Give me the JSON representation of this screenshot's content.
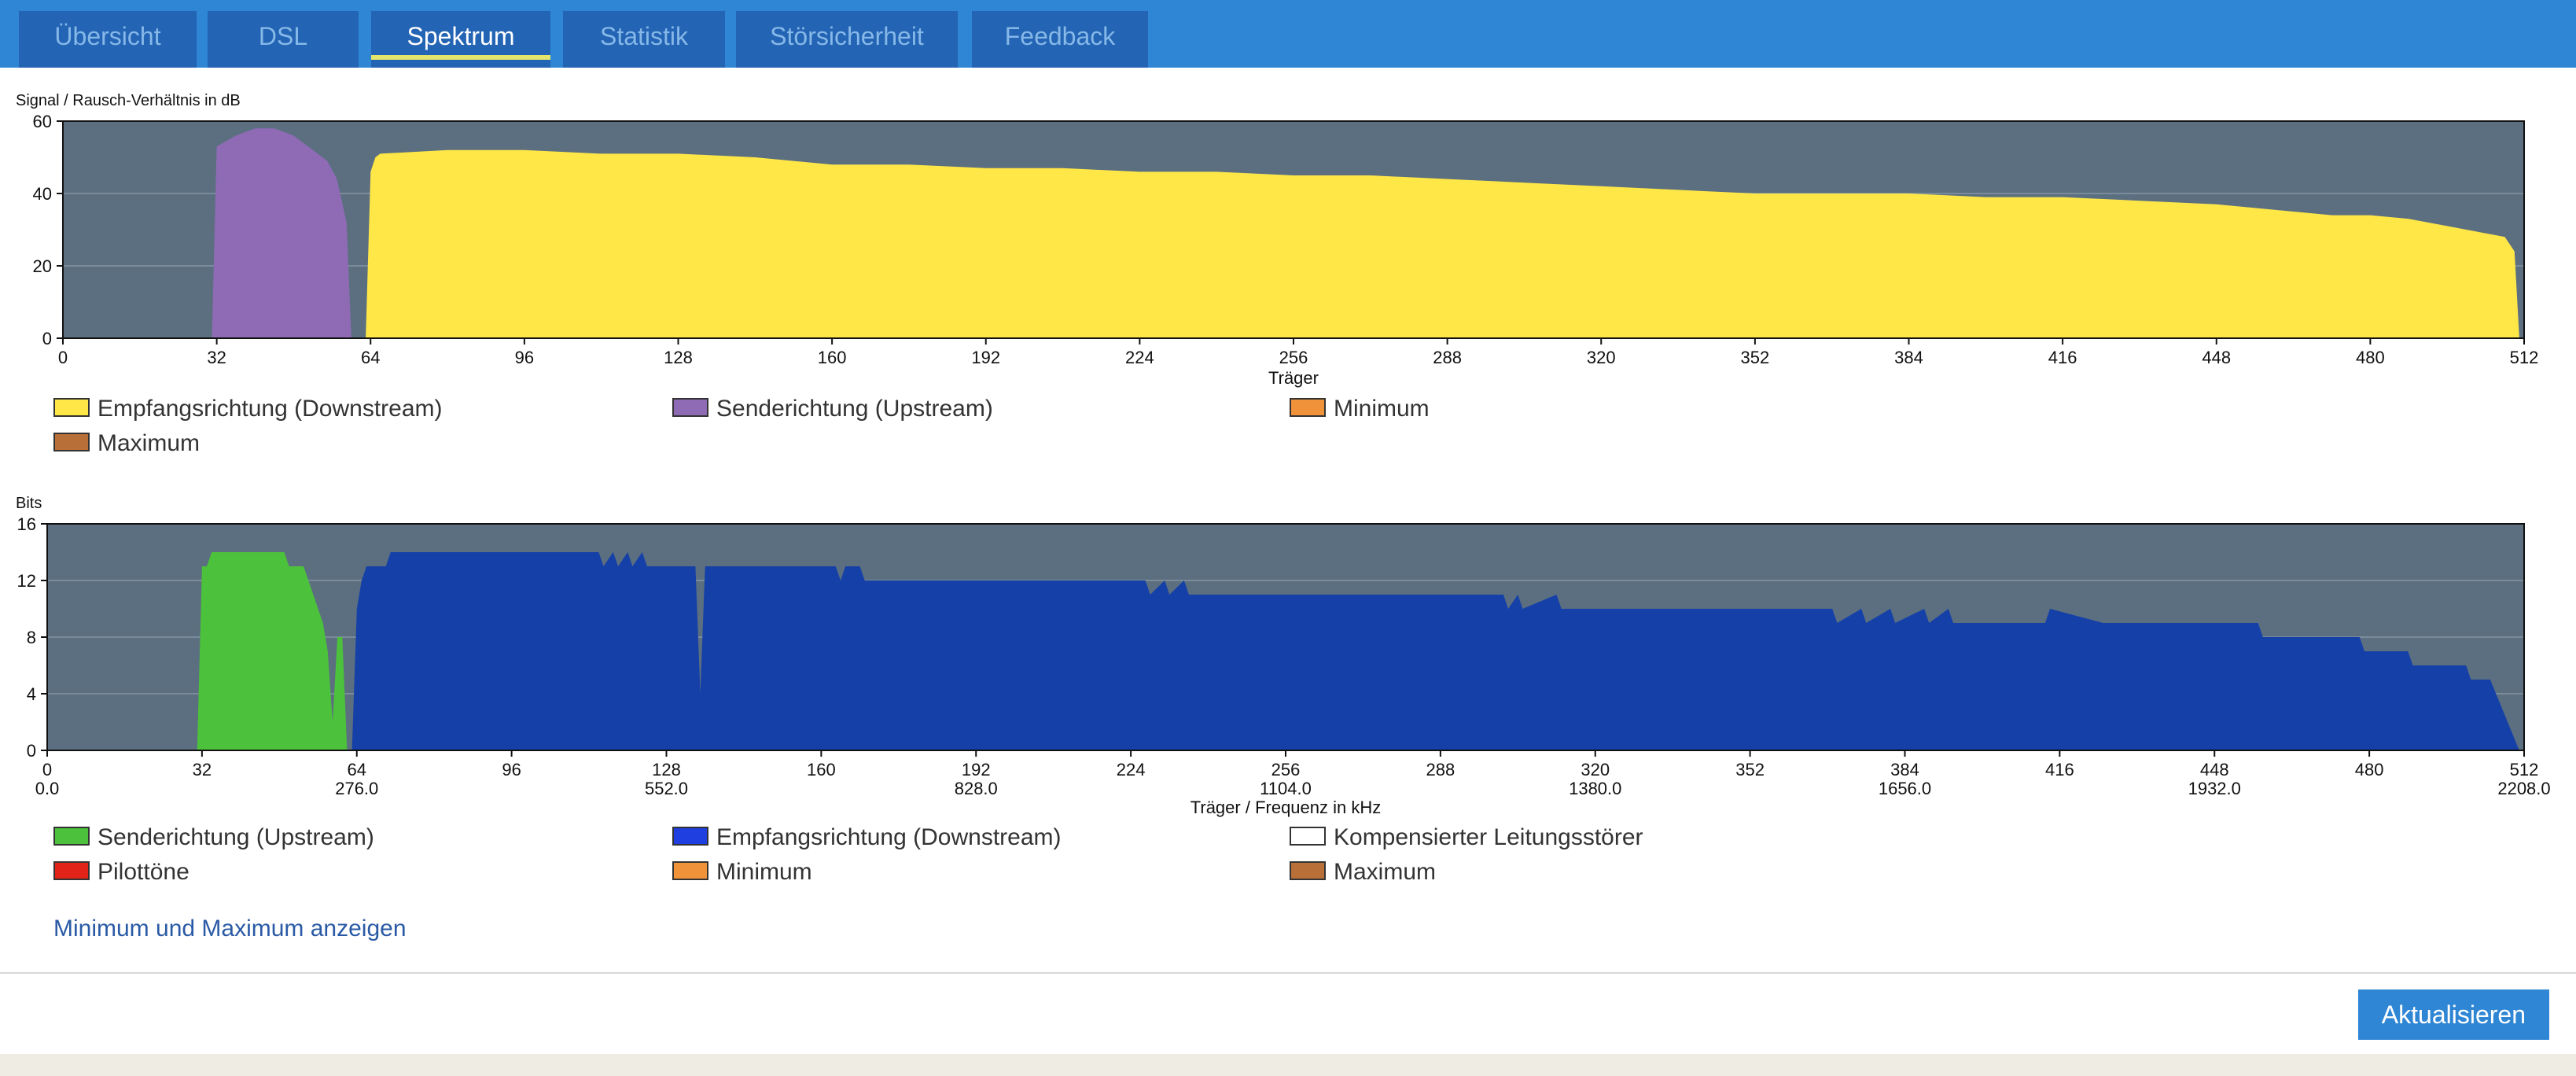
{
  "tabs": [
    {
      "label": "Übersicht",
      "active": false
    },
    {
      "label": "DSL",
      "active": false
    },
    {
      "label": "Spektrum",
      "active": true
    },
    {
      "label": "Statistik",
      "active": false
    },
    {
      "label": "Störsicherheit",
      "active": false
    },
    {
      "label": "Feedback",
      "active": false
    }
  ],
  "colors": {
    "tabbar": "#2f86d4",
    "tab": "#2364b4",
    "plot_bg": "#5b6f80",
    "snr_down": "#ffe748",
    "snr_up": "#8f6bb5",
    "bits_up": "#4cc13b",
    "bits_down": "#1540a8",
    "minimum": "#f0923a",
    "maximum": "#b87038",
    "pilot": "#e2231a",
    "compensated": "#ffffff"
  },
  "chart_data": [
    {
      "type": "area",
      "ylabel": "Signal / Rausch-Verhältnis in dB",
      "xlabel": "Träger",
      "xlim": [
        0,
        512
      ],
      "ylim": [
        0,
        60
      ],
      "yticks": [
        "0",
        "20",
        "40",
        "60"
      ],
      "xticks": [
        "0",
        "32",
        "64",
        "96",
        "128",
        "160",
        "192",
        "224",
        "256",
        "288",
        "320",
        "352",
        "384",
        "416",
        "448",
        "480",
        "512"
      ],
      "series": [
        {
          "name": "Senderichtung (Upstream)",
          "color": "#8f6bb5",
          "x": [
            31,
            32,
            36,
            40,
            44,
            48,
            52,
            55,
            57,
            58,
            59,
            60
          ],
          "y": [
            0,
            53,
            56,
            58,
            58,
            56,
            52,
            49,
            44,
            38,
            32,
            0
          ]
        },
        {
          "name": "Empfangsrichtung (Downstream)",
          "color": "#ffe748",
          "x": [
            63,
            64,
            65,
            66,
            80,
            96,
            112,
            128,
            144,
            160,
            176,
            192,
            208,
            224,
            240,
            256,
            272,
            288,
            304,
            320,
            336,
            352,
            368,
            384,
            400,
            416,
            432,
            448,
            456,
            464,
            472,
            480,
            488,
            496,
            500,
            504,
            508,
            510,
            511
          ],
          "y": [
            0,
            46,
            50,
            51,
            52,
            52,
            51,
            51,
            50,
            48,
            48,
            47,
            47,
            46,
            46,
            45,
            45,
            44,
            43,
            42,
            41,
            40,
            40,
            40,
            39,
            39,
            38,
            37,
            36,
            35,
            34,
            34,
            33,
            31,
            30,
            29,
            28,
            24,
            0
          ]
        }
      ],
      "legend": [
        {
          "label": "Empfangsrichtung (Downstream)",
          "color": "#ffe748"
        },
        {
          "label": "Senderichtung (Upstream)",
          "color": "#8f6bb5"
        },
        {
          "label": "Minimum",
          "color": "#f0923a"
        },
        {
          "label": "Maximum",
          "color": "#b87038"
        }
      ]
    },
    {
      "type": "area",
      "ylabel": "Bits",
      "xlabel": "Träger / Frequenz in kHz",
      "xlim": [
        0,
        512
      ],
      "ylim": [
        0,
        16
      ],
      "yticks": [
        "0",
        "4",
        "8",
        "12",
        "16"
      ],
      "xticks": [
        "0",
        "32",
        "64",
        "96",
        "128",
        "160",
        "192",
        "224",
        "256",
        "288",
        "320",
        "352",
        "384",
        "416",
        "448",
        "480",
        "512"
      ],
      "freq_ticks": {
        "32": "",
        "64": "276.0",
        "128": "552.0",
        "192": "828.0",
        "256": "1104.0",
        "320": "1380.0",
        "384": "1656.0",
        "448": "1932.0",
        "512": "2208.0",
        "0": "0.0"
      },
      "series": [
        {
          "name": "Senderichtung (Upstream)",
          "color": "#4cc13b",
          "x": [
            31,
            32,
            33,
            34,
            49,
            50,
            53,
            54,
            55,
            56,
            57,
            58,
            59,
            60,
            61,
            62,
            63
          ],
          "y": [
            0,
            13,
            13,
            14,
            14,
            13,
            13,
            12,
            11,
            10,
            9,
            7,
            2,
            8,
            8,
            0,
            0
          ]
        },
        {
          "name": "Empfangsrichtung (Downstream)",
          "color": "#1540a8",
          "x": [
            63,
            64,
            65,
            66,
            70,
            71,
            114,
            115,
            117,
            118,
            120,
            121,
            123,
            124,
            134,
            135,
            136,
            137,
            163,
            164,
            165,
            168,
            169,
            227,
            228,
            231,
            232,
            235,
            236,
            301,
            302,
            304,
            305,
            312,
            313,
            369,
            370,
            375,
            376,
            381,
            382,
            388,
            389,
            393,
            394,
            413,
            414,
            425,
            426,
            457,
            458,
            478,
            479,
            488,
            489,
            500,
            501,
            505,
            511
          ],
          "y": [
            0,
            10,
            12,
            13,
            13,
            14,
            14,
            13,
            14,
            13,
            14,
            13,
            14,
            13,
            13,
            4,
            13,
            13,
            13,
            12,
            13,
            13,
            12,
            12,
            11,
            12,
            11,
            12,
            11,
            11,
            10,
            11,
            10,
            11,
            10,
            10,
            9,
            10,
            9,
            10,
            9,
            10,
            9,
            10,
            9,
            9,
            10,
            9,
            9,
            9,
            8,
            8,
            7,
            7,
            6,
            6,
            5,
            5,
            0
          ]
        }
      ],
      "legend": [
        {
          "label": "Senderichtung (Upstream)",
          "color": "#4cc13b"
        },
        {
          "label": "Empfangsrichtung (Downstream)",
          "color": "#1f3fe0"
        },
        {
          "label": "Kompensierter Leitungsstörer",
          "color": "#ffffff"
        },
        {
          "label": "Pilottöne",
          "color": "#e2231a"
        },
        {
          "label": "Minimum",
          "color": "#f0923a"
        },
        {
          "label": "Maximum",
          "color": "#b87038"
        }
      ]
    }
  ],
  "toggle_link": "Minimum und Maximum anzeigen",
  "refresh_button": "Aktualisieren"
}
